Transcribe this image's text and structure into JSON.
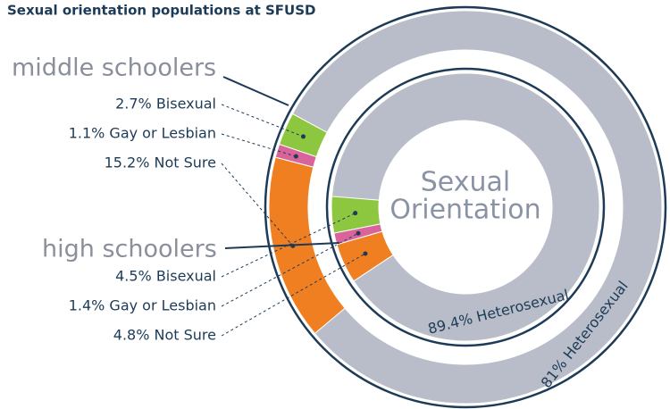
{
  "chart_data": {
    "type": "donut",
    "title": "Sexual orientation populations at SFUSD",
    "center_label": [
      "Sexual",
      "Orientation"
    ],
    "colors": [
      "#8dc63f",
      "#d9649b",
      "#f07f22",
      "#b9bdc9"
    ],
    "rings": [
      {
        "name": "middle schoolers",
        "values": [
          2.7,
          1.1,
          15.2,
          81
        ],
        "value_labels": [
          "2.7% Bisexual",
          "1.1% Gay or Lesbian",
          "15.2% Not Sure",
          "81% Heterosexual"
        ]
      },
      {
        "name": "high schoolers",
        "values": [
          4.5,
          1.4,
          4.8,
          89.4
        ],
        "value_labels": [
          "4.5% Bisexual",
          "1.4% Gay or Lesbian",
          "4.8% Not Sure",
          "89.4% Heterosexual"
        ]
      }
    ]
  }
}
